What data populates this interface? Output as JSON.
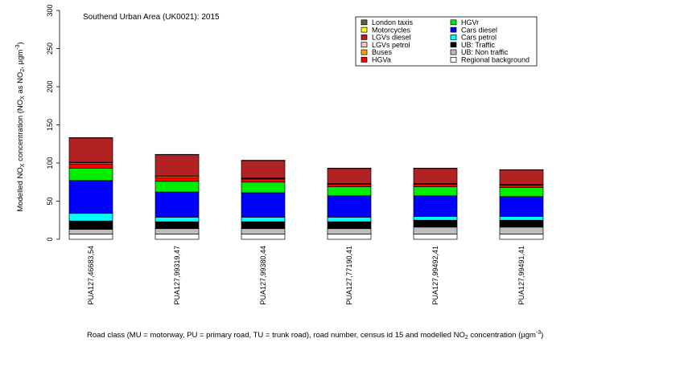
{
  "chart_data": {
    "type": "bar",
    "stacked": true,
    "title": "Southend Urban Area (UK0021): 2015",
    "ylabel_parts": {
      "a": "Modelled NO",
      "b": "X",
      "c": " concentration (NO",
      "d": "X",
      "e": " as NO",
      "f": "2",
      "g": ", µgm",
      "h": "-3",
      "i": ")"
    },
    "xlabel_parts": {
      "a": "Road class (MU = motorway, PU = primary road, TU = trunk road), road number, census id 15 and modelled NO",
      "b": "2",
      "c": " concentration (µgm",
      "d": "-3",
      "e": ")"
    },
    "ylim": [
      0,
      300
    ],
    "yticks": [
      "0",
      "50",
      "100",
      "150",
      "200",
      "250",
      "300"
    ],
    "categories": [
      "PUA127,46683,54",
      "PUA127,99319,47",
      "PUA127,99380,44",
      "PUA127,77190,41",
      "PUA127,99492,41",
      "PUA127,99491,41"
    ],
    "series": [
      {
        "name": "Regional background",
        "color": "#ffffff",
        "values": [
          7,
          7,
          7,
          7,
          7,
          7
        ]
      },
      {
        "name": "UB: Non traffic",
        "color": "#bebebe",
        "values": [
          6,
          7,
          7,
          7,
          9,
          9
        ]
      },
      {
        "name": "UB: Traffic",
        "color": "#000000",
        "values": [
          11,
          9,
          9,
          9,
          9,
          9
        ]
      },
      {
        "name": "Cars petrol",
        "color": "#00ffff",
        "values": [
          10,
          6,
          6,
          6,
          5,
          5
        ]
      },
      {
        "name": "Cars diesel",
        "color": "#0000ff",
        "values": [
          43,
          33,
          32,
          28,
          27,
          26
        ]
      },
      {
        "name": "HGVr",
        "color": "#00ee00",
        "values": [
          16,
          14,
          14,
          12,
          12,
          12
        ]
      },
      {
        "name": "HGVa",
        "color": "#ff0000",
        "values": [
          6,
          5,
          4,
          3,
          3,
          3
        ]
      },
      {
        "name": "Buses",
        "color": "#ffa500",
        "values": [
          1.5,
          1.5,
          0.8,
          0.5,
          0.5,
          0.5
        ]
      },
      {
        "name": "LGVs petrol",
        "color": "#ffc0cb",
        "values": [
          0.5,
          0.5,
          0.5,
          0.5,
          0.5,
          0.5
        ]
      },
      {
        "name": "LGVs diesel",
        "color": "#b22222",
        "values": [
          32,
          28,
          23,
          20,
          20,
          19
        ]
      },
      {
        "name": "Motorcycles",
        "color": "#ffff00",
        "values": [
          0.3,
          0.3,
          0.3,
          0.3,
          0.3,
          0.3
        ]
      },
      {
        "name": "London taxis",
        "color": "#556b2f",
        "values": [
          0,
          0,
          0,
          0,
          0,
          0
        ]
      }
    ],
    "legend": {
      "placement": "top-right",
      "column1": [
        "London taxis",
        "Motorcycles",
        "LGVs diesel",
        "LGVs petrol",
        "Buses",
        "HGVa"
      ],
      "column2": [
        "HGVr",
        "Cars diesel",
        "Cars petrol",
        "UB: Traffic",
        "UB: Non traffic",
        "Regional background"
      ]
    },
    "grid": false
  }
}
